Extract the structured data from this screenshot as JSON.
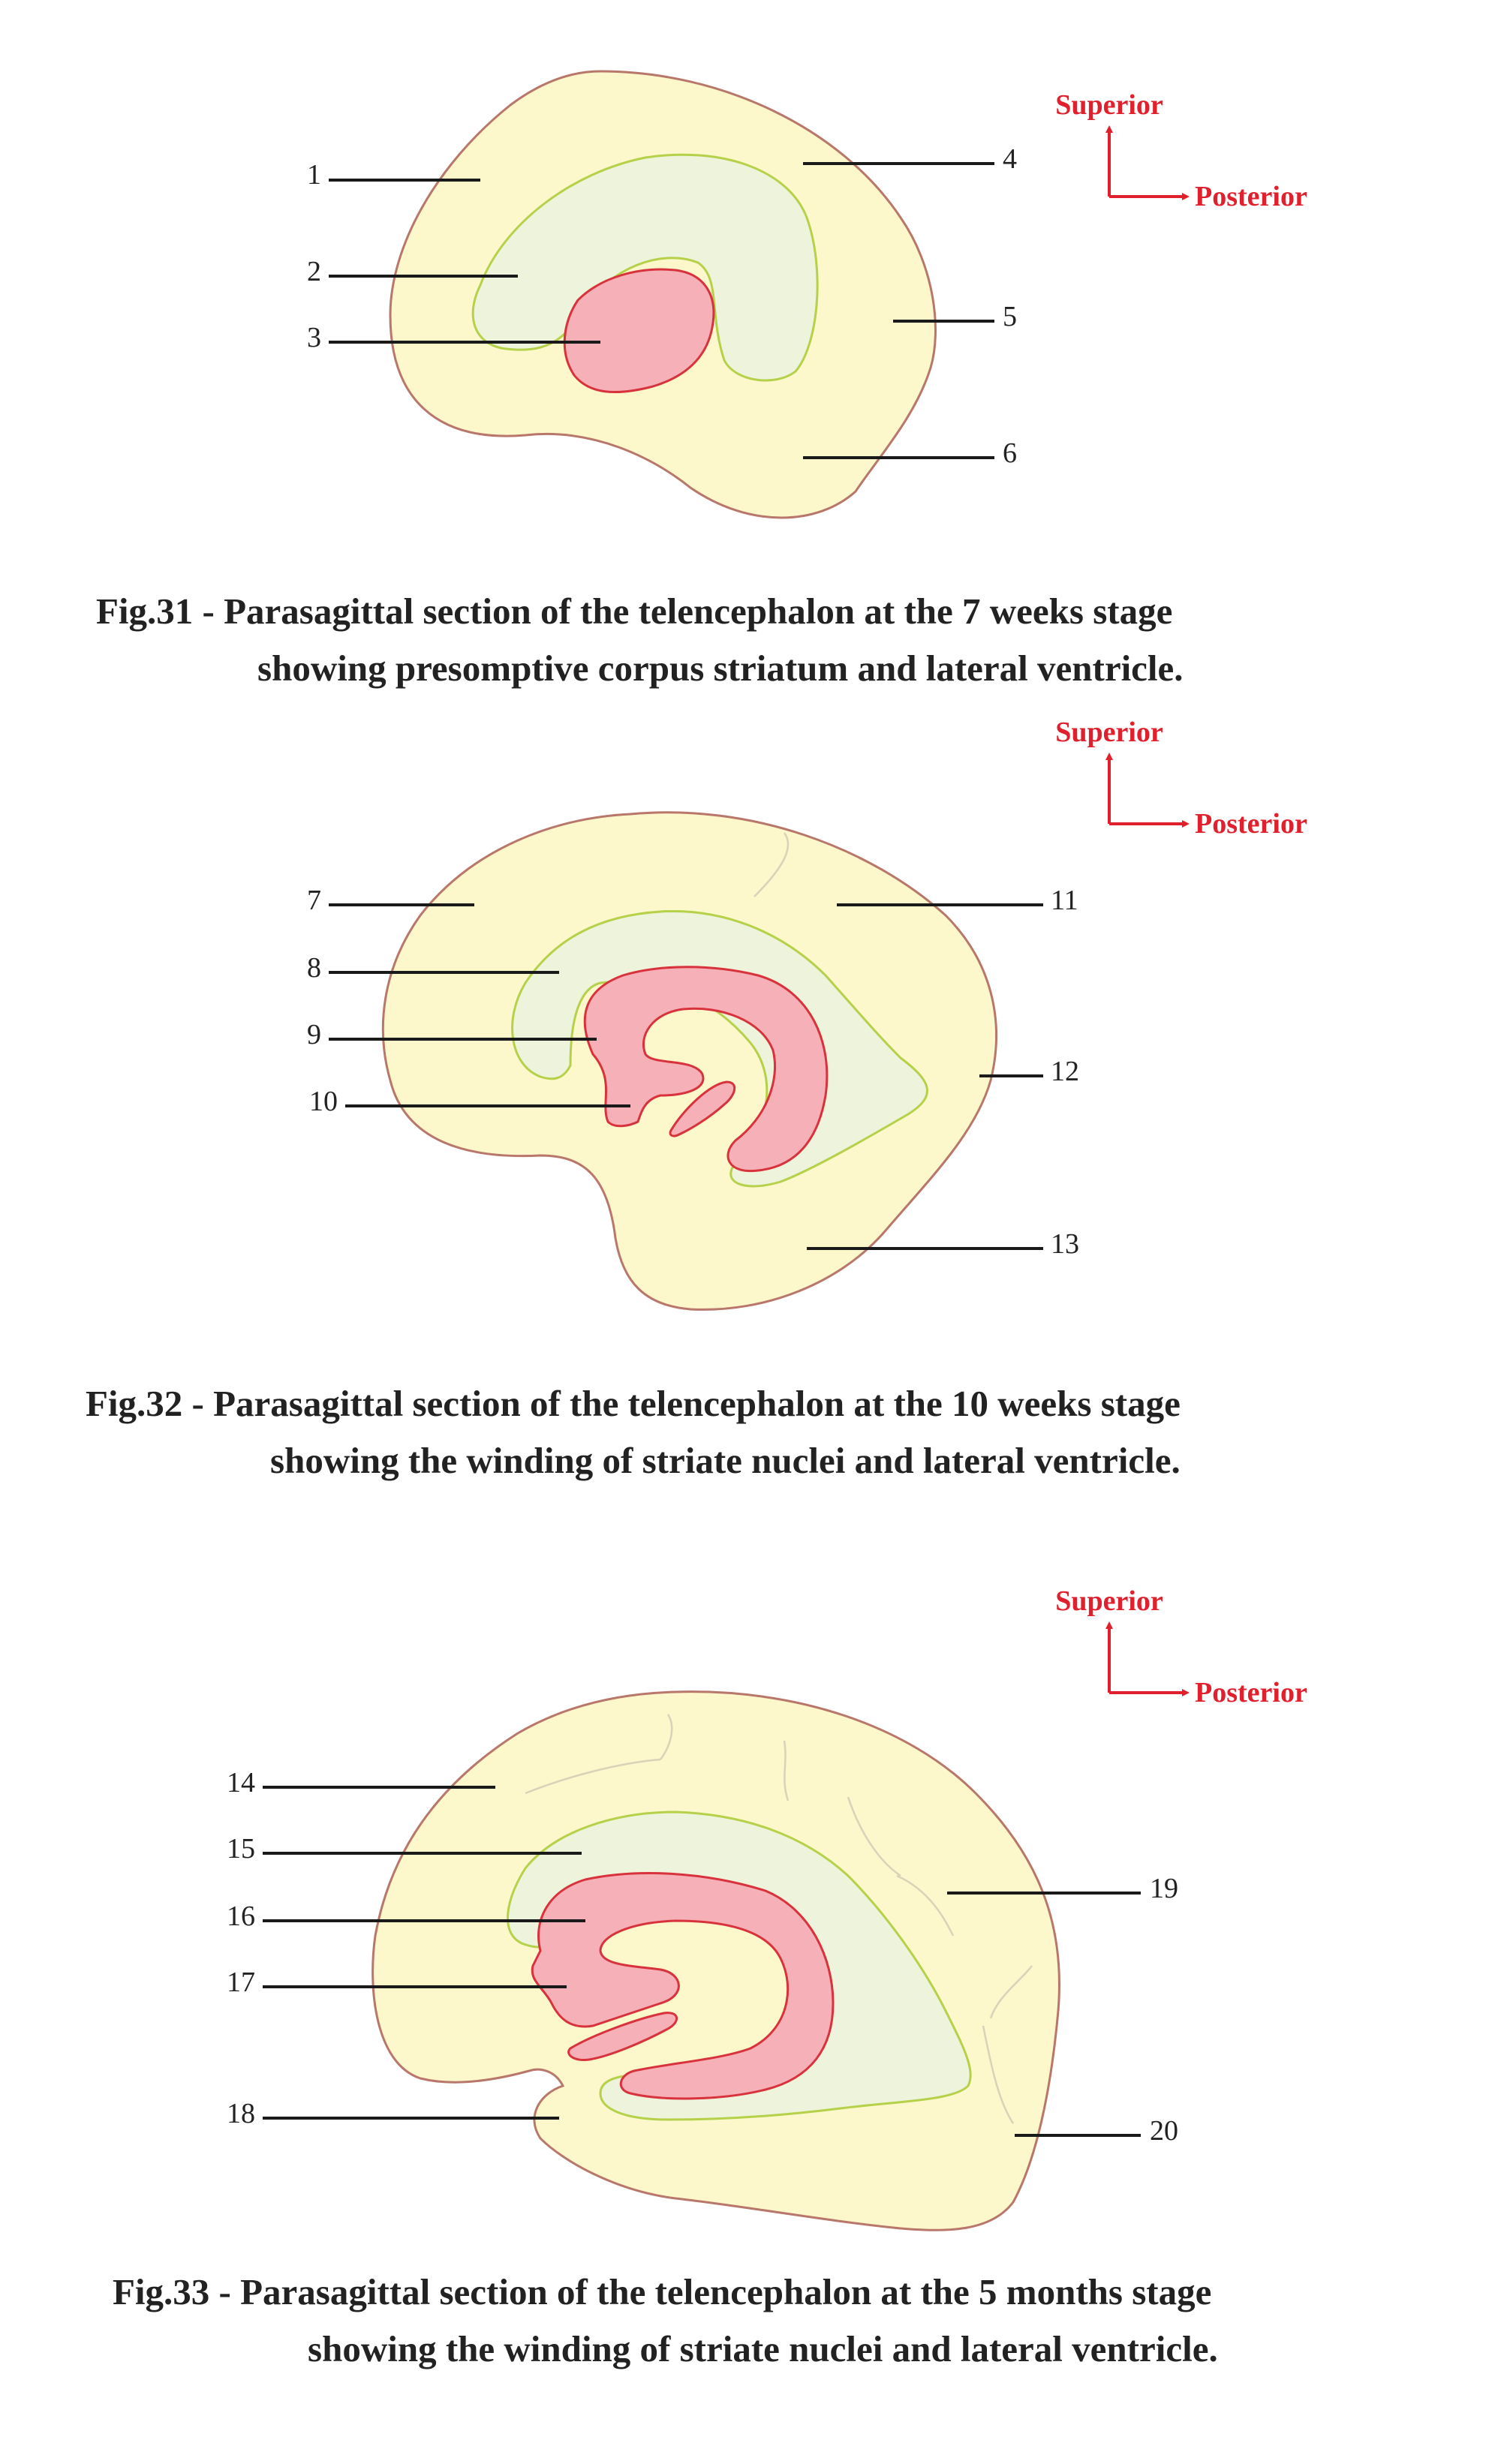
{
  "orientation": {
    "superior": "Superior",
    "posterior": "Posterior"
  },
  "colors": {
    "outer_fill": "#fdf7cc",
    "outer_stroke": "#b8776a",
    "ventricle_fill": "#eef3dc",
    "ventricle_stroke": "#b5d14a",
    "striatum_fill": "#f5b0b8",
    "striatum_stroke": "#d8323c",
    "orientation_red": "#e0202c"
  },
  "figures": [
    {
      "caption_line1": "Fig.31 - Parasagittal section of the telencephalon at the 7 weeks stage",
      "caption_line2": "showing presomptive corpus striatum and lateral ventricle.",
      "labels": [
        "1",
        "2",
        "3",
        "4",
        "5",
        "6"
      ]
    },
    {
      "caption_line1": "Fig.32 - Parasagittal section of the telencephalon at the 10 weeks stage",
      "caption_line2": "showing the winding of striate nuclei and lateral ventricle.",
      "labels": [
        "7",
        "8",
        "9",
        "10",
        "11",
        "12",
        "13"
      ]
    },
    {
      "caption_line1": "Fig.33 - Parasagittal section of the telencephalon at the 5 months stage",
      "caption_line2": "showing the winding of striate nuclei and lateral ventricle.",
      "labels": [
        "14",
        "15",
        "16",
        "17",
        "18",
        "19",
        "20"
      ]
    }
  ]
}
